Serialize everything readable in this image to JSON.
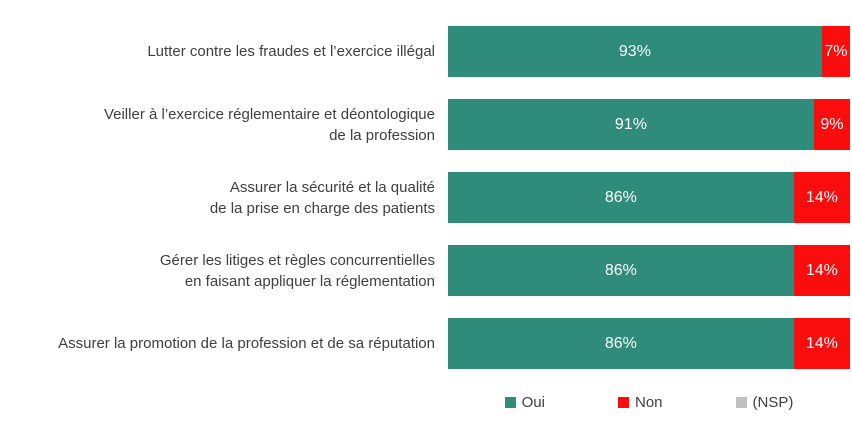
{
  "chart_data": {
    "type": "bar",
    "orientation": "horizontal",
    "stacked": true,
    "unit": "%",
    "xlim": [
      0,
      100
    ],
    "grid": false,
    "legend_position": "bottom",
    "value_labels_visible": true,
    "categories": [
      "Lutter contre les fraudes et l’exercice illégal",
      "Veiller à l’exercice réglementaire et déontologique\nde la profession",
      "Assurer la sécurité et la qualité\nde la prise en charge des patients",
      "Gérer les litiges et règles concurrentielles\nen faisant appliquer la réglementation",
      "Assurer la promotion de la profession et de sa réputation"
    ],
    "series": [
      {
        "name": "Oui",
        "color": "#2F8C7A",
        "values": [
          93,
          91,
          86,
          86,
          86
        ]
      },
      {
        "name": "Non",
        "color": "#FB0D0D",
        "values": [
          7,
          9,
          14,
          14,
          14
        ]
      },
      {
        "name": "(NSP)",
        "color": "#C0C0C0",
        "values": [
          0,
          0,
          0,
          0,
          0
        ]
      }
    ]
  },
  "colors": {
    "background": "#FFFFFF",
    "category_text": "#404040",
    "bar_value_text": "#FFFFFF",
    "legend_text": "#404040"
  }
}
